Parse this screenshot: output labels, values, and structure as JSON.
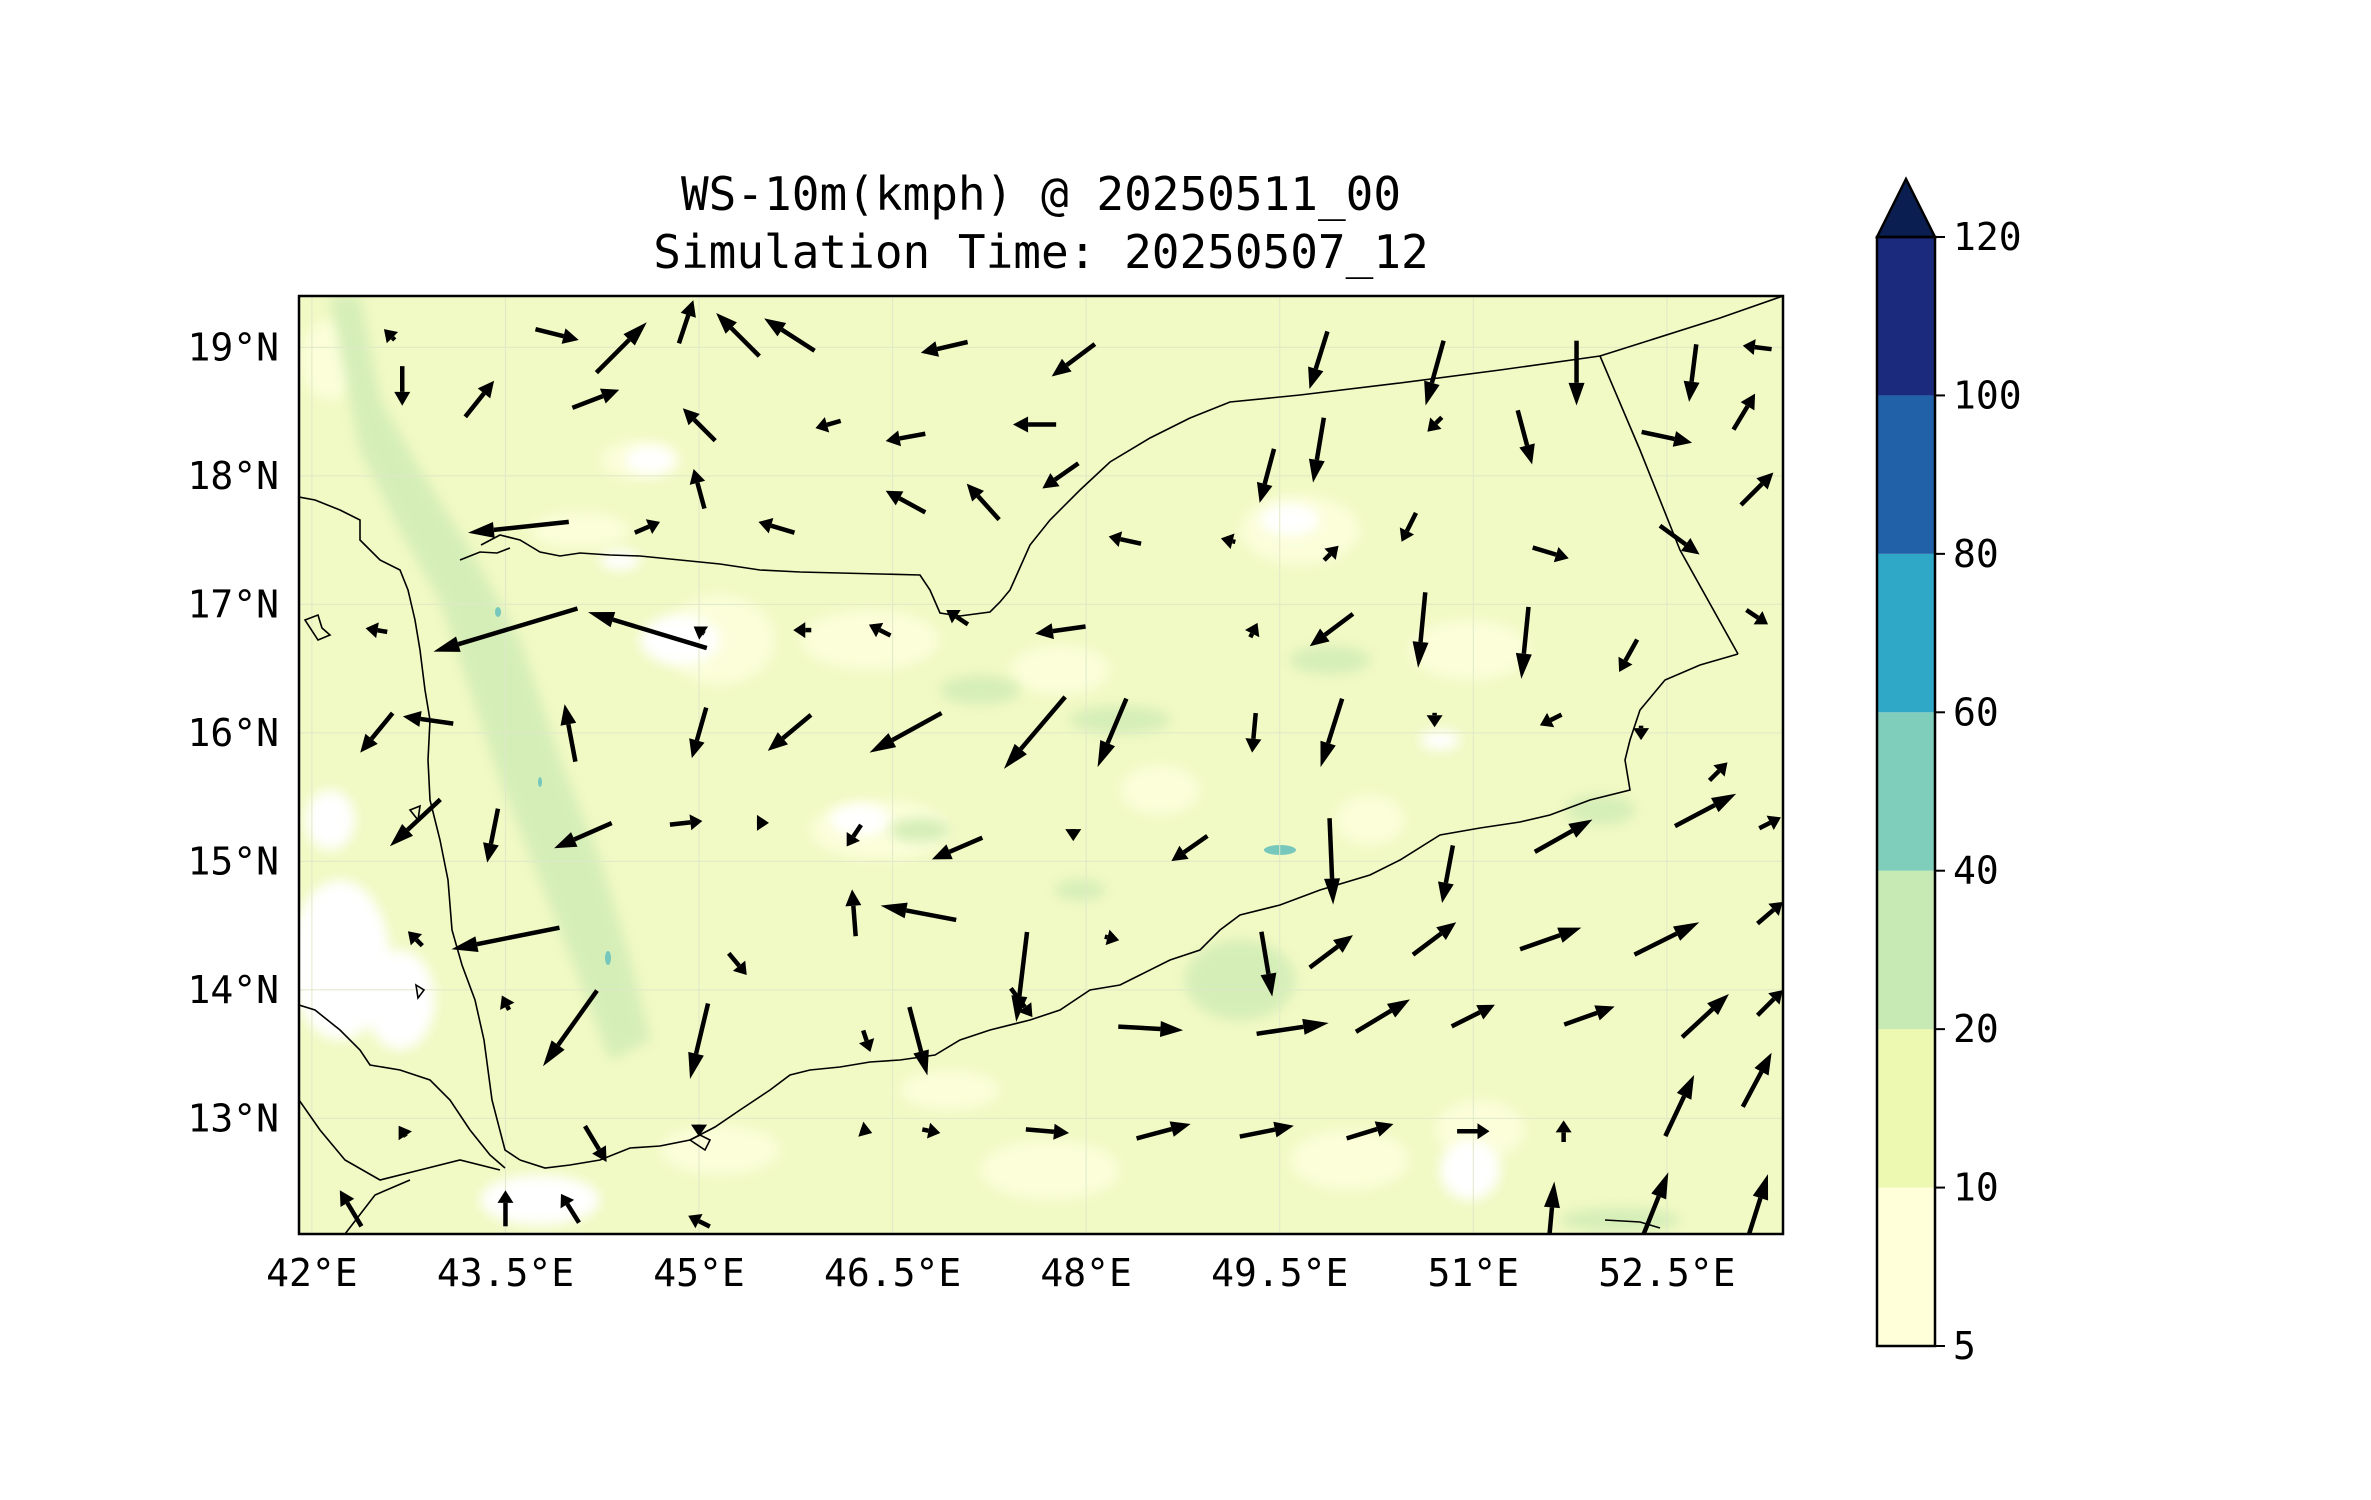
{
  "title": {
    "line1": "WS-10m(kmph) @ 20250511_00",
    "line2": "Simulation Time: 20250507_12"
  },
  "map": {
    "lon_range": [
      41.9,
      53.4
    ],
    "lat_range": [
      12.1,
      19.4
    ],
    "x_ticks": [
      {
        "value": 42.0,
        "label": "42°E"
      },
      {
        "value": 43.5,
        "label": "43.5°E"
      },
      {
        "value": 45.0,
        "label": "45°E"
      },
      {
        "value": 46.5,
        "label": "46.5°E"
      },
      {
        "value": 48.0,
        "label": "48°E"
      },
      {
        "value": 49.5,
        "label": "49.5°E"
      },
      {
        "value": 51.0,
        "label": "51°E"
      },
      {
        "value": 52.5,
        "label": "52.5°E"
      }
    ],
    "y_ticks": [
      {
        "value": 19,
        "label": "19°N"
      },
      {
        "value": 18,
        "label": "18°N"
      },
      {
        "value": 17,
        "label": "17°N"
      },
      {
        "value": 16,
        "label": "16°N"
      },
      {
        "value": 15,
        "label": "15°N"
      },
      {
        "value": 14,
        "label": "14°N"
      },
      {
        "value": 13,
        "label": "13°N"
      }
    ],
    "field_colors": {
      "lt5": "#ffffff",
      "5_10": "#fbfed9",
      "10_20": "#eef8c0",
      "20_40": "#d3edb5",
      "40_60": "#76c7bc"
    }
  },
  "colorbar": {
    "levels": [
      5,
      10,
      20,
      40,
      60,
      80,
      100,
      120
    ],
    "colors": [
      "#ffffd9",
      "#edf8b1",
      "#c7e9b4",
      "#7fcdbb",
      "#2fa7c7",
      "#2161a8",
      "#1c2a7d"
    ],
    "extend_color": "#0b1e52",
    "labels": [
      "5",
      "10",
      "20",
      "40",
      "60",
      "80",
      "100",
      "120"
    ]
  },
  "wind_vectors": [
    {
      "lon": 42.6,
      "lat": 19.1,
      "u": -3,
      "v": 3
    },
    {
      "lon": 43.9,
      "lat": 19.1,
      "u": 12,
      "v": -3
    },
    {
      "lon": 44.4,
      "lat": 19.0,
      "u": 14,
      "v": 14
    },
    {
      "lon": 44.9,
      "lat": 19.2,
      "u": 4,
      "v": 12
    },
    {
      "lon": 45.3,
      "lat": 19.1,
      "u": -12,
      "v": 12
    },
    {
      "lon": 45.7,
      "lat": 19.1,
      "u": -14,
      "v": 9
    },
    {
      "lon": 46.9,
      "lat": 19.0,
      "u": -13,
      "v": -3
    },
    {
      "lon": 47.9,
      "lat": 18.9,
      "u": -12,
      "v": -9
    },
    {
      "lon": 49.8,
      "lat": 18.9,
      "u": -5,
      "v": -16
    },
    {
      "lon": 50.7,
      "lat": 18.8,
      "u": -5,
      "v": -18
    },
    {
      "lon": 51.8,
      "lat": 18.8,
      "u": 0,
      "v": -18
    },
    {
      "lon": 52.7,
      "lat": 18.8,
      "u": -2,
      "v": -16
    },
    {
      "lon": 53.2,
      "lat": 19.0,
      "u": -8,
      "v": 1
    },
    {
      "lon": 53.1,
      "lat": 18.5,
      "u": 6,
      "v": 10
    },
    {
      "lon": 42.7,
      "lat": 18.7,
      "u": 0,
      "v": -11
    },
    {
      "lon": 43.3,
      "lat": 18.6,
      "u": 8,
      "v": 10
    },
    {
      "lon": 44.2,
      "lat": 18.6,
      "u": 13,
      "v": 5
    },
    {
      "lon": 45.0,
      "lat": 18.4,
      "u": -9,
      "v": 9
    },
    {
      "lon": 46.0,
      "lat": 18.4,
      "u": -7,
      "v": -2
    },
    {
      "lon": 46.6,
      "lat": 18.3,
      "u": -11,
      "v": -2
    },
    {
      "lon": 47.6,
      "lat": 18.4,
      "u": -12,
      "v": 0
    },
    {
      "lon": 47.8,
      "lat": 18.0,
      "u": -10,
      "v": -7
    },
    {
      "lon": 49.4,
      "lat": 18.0,
      "u": -4,
      "v": -15
    },
    {
      "lon": 49.8,
      "lat": 18.2,
      "u": -3,
      "v": -18
    },
    {
      "lon": 50.7,
      "lat": 18.4,
      "u": -4,
      "v": -4
    },
    {
      "lon": 51.4,
      "lat": 18.3,
      "u": 4,
      "v": -15
    },
    {
      "lon": 52.5,
      "lat": 18.3,
      "u": 14,
      "v": -3
    },
    {
      "lon": 53.2,
      "lat": 17.9,
      "u": 9,
      "v": 9
    },
    {
      "lon": 43.6,
      "lat": 17.6,
      "u": -28,
      "v": -3
    },
    {
      "lon": 44.6,
      "lat": 17.6,
      "u": 7,
      "v": 3
    },
    {
      "lon": 45.0,
      "lat": 17.9,
      "u": -3,
      "v": 11
    },
    {
      "lon": 45.6,
      "lat": 17.6,
      "u": -10,
      "v": 3
    },
    {
      "lon": 46.6,
      "lat": 17.8,
      "u": -11,
      "v": 6
    },
    {
      "lon": 47.2,
      "lat": 17.8,
      "u": -9,
      "v": 10
    },
    {
      "lon": 48.3,
      "lat": 17.5,
      "u": -9,
      "v": 2
    },
    {
      "lon": 49.1,
      "lat": 17.5,
      "u": -4,
      "v": 1
    },
    {
      "lon": 49.9,
      "lat": 17.4,
      "u": 4,
      "v": 4
    },
    {
      "lon": 50.5,
      "lat": 17.6,
      "u": -4,
      "v": -8
    },
    {
      "lon": 51.6,
      "lat": 17.4,
      "u": 10,
      "v": -3
    },
    {
      "lon": 52.6,
      "lat": 17.5,
      "u": 11,
      "v": -8
    },
    {
      "lon": 53.2,
      "lat": 16.9,
      "u": 6,
      "v": -4
    },
    {
      "lon": 42.5,
      "lat": 16.8,
      "u": -6,
      "v": 1
    },
    {
      "lon": 43.5,
      "lat": 16.8,
      "u": -40,
      "v": -12
    },
    {
      "lon": 44.6,
      "lat": 16.8,
      "u": -33,
      "v": 10
    },
    {
      "lon": 45.0,
      "lat": 16.8,
      "u": -3,
      "v": 2
    },
    {
      "lon": 45.8,
      "lat": 16.8,
      "u": -5,
      "v": 0
    },
    {
      "lon": 46.4,
      "lat": 16.8,
      "u": -6,
      "v": 3
    },
    {
      "lon": 47.0,
      "lat": 16.9,
      "u": -6,
      "v": 4
    },
    {
      "lon": 47.8,
      "lat": 16.8,
      "u": -14,
      "v": -2
    },
    {
      "lon": 49.3,
      "lat": 16.8,
      "u": 2,
      "v": 4
    },
    {
      "lon": 49.9,
      "lat": 16.8,
      "u": -12,
      "v": -9
    },
    {
      "lon": 50.6,
      "lat": 16.8,
      "u": -2,
      "v": -21
    },
    {
      "lon": 51.4,
      "lat": 16.7,
      "u": -2,
      "v": -20
    },
    {
      "lon": 52.2,
      "lat": 16.6,
      "u": -5,
      "v": -9
    },
    {
      "lon": 52.9,
      "lat": 15.7,
      "u": 5,
      "v": 5
    },
    {
      "lon": 42.9,
      "lat": 16.1,
      "u": -14,
      "v": 2
    },
    {
      "lon": 42.5,
      "lat": 16.0,
      "u": -9,
      "v": -11
    },
    {
      "lon": 44.0,
      "lat": 16.0,
      "u": -3,
      "v": 16
    },
    {
      "lon": 45.0,
      "lat": 16.0,
      "u": -4,
      "v": -14
    },
    {
      "lon": 45.7,
      "lat": 16.0,
      "u": -12,
      "v": -10
    },
    {
      "lon": 46.6,
      "lat": 16.0,
      "u": -20,
      "v": -11
    },
    {
      "lon": 47.6,
      "lat": 16.0,
      "u": -17,
      "v": -20
    },
    {
      "lon": 48.2,
      "lat": 16.0,
      "u": -8,
      "v": -19
    },
    {
      "lon": 49.3,
      "lat": 16.0,
      "u": -1,
      "v": -11
    },
    {
      "lon": 49.9,
      "lat": 16.0,
      "u": -6,
      "v": -19
    },
    {
      "lon": 50.7,
      "lat": 16.1,
      "u": 0,
      "v": -4
    },
    {
      "lon": 51.6,
      "lat": 16.1,
      "u": -6,
      "v": -3
    },
    {
      "lon": 52.3,
      "lat": 16.0,
      "u": 0,
      "v": -4
    },
    {
      "lon": 42.8,
      "lat": 15.3,
      "u": -14,
      "v": -13
    },
    {
      "lon": 43.4,
      "lat": 15.2,
      "u": -3,
      "v": -15
    },
    {
      "lon": 44.1,
      "lat": 15.2,
      "u": -16,
      "v": -7
    },
    {
      "lon": 44.9,
      "lat": 15.3,
      "u": 9,
      "v": 1
    },
    {
      "lon": 45.5,
      "lat": 15.3,
      "u": 3,
      "v": 0
    },
    {
      "lon": 46.2,
      "lat": 15.2,
      "u": -4,
      "v": -6
    },
    {
      "lon": 47.0,
      "lat": 15.1,
      "u": -14,
      "v": -6
    },
    {
      "lon": 47.9,
      "lat": 15.2,
      "u": 0,
      "v": -3
    },
    {
      "lon": 48.8,
      "lat": 15.1,
      "u": -10,
      "v": -7
    },
    {
      "lon": 49.9,
      "lat": 15.0,
      "u": 1,
      "v": -24
    },
    {
      "lon": 50.8,
      "lat": 14.9,
      "u": -3,
      "v": -16
    },
    {
      "lon": 51.7,
      "lat": 15.2,
      "u": 16,
      "v": 9
    },
    {
      "lon": 52.8,
      "lat": 15.4,
      "u": 17,
      "v": 9
    },
    {
      "lon": 53.3,
      "lat": 15.3,
      "u": 6,
      "v": 3
    },
    {
      "lon": 42.8,
      "lat": 14.4,
      "u": -4,
      "v": 4
    },
    {
      "lon": 43.5,
      "lat": 14.4,
      "u": -30,
      "v": -6
    },
    {
      "lon": 43.5,
      "lat": 13.9,
      "u": -2,
      "v": 4
    },
    {
      "lon": 45.3,
      "lat": 14.2,
      "u": 5,
      "v": -6
    },
    {
      "lon": 46.2,
      "lat": 14.6,
      "u": -1,
      "v": 13
    },
    {
      "lon": 46.7,
      "lat": 14.6,
      "u": -21,
      "v": 4
    },
    {
      "lon": 47.5,
      "lat": 14.1,
      "u": -3,
      "v": -25
    },
    {
      "lon": 48.2,
      "lat": 14.4,
      "u": 4,
      "v": -1
    },
    {
      "lon": 49.4,
      "lat": 14.2,
      "u": 3,
      "v": -18
    },
    {
      "lon": 49.9,
      "lat": 14.3,
      "u": 12,
      "v": 9
    },
    {
      "lon": 50.7,
      "lat": 14.4,
      "u": 12,
      "v": 9
    },
    {
      "lon": 51.6,
      "lat": 14.4,
      "u": 17,
      "v": 6
    },
    {
      "lon": 52.5,
      "lat": 14.4,
      "u": 18,
      "v": 9
    },
    {
      "lon": 53.3,
      "lat": 14.6,
      "u": 7,
      "v": 6
    },
    {
      "lon": 42.7,
      "lat": 12.9,
      "u": -2,
      "v": 3
    },
    {
      "lon": 44.0,
      "lat": 13.7,
      "u": -15,
      "v": -21
    },
    {
      "lon": 44.2,
      "lat": 12.8,
      "u": 6,
      "v": -10
    },
    {
      "lon": 45.0,
      "lat": 13.6,
      "u": -5,
      "v": -21
    },
    {
      "lon": 46.3,
      "lat": 13.6,
      "u": 2,
      "v": -6
    },
    {
      "lon": 46.7,
      "lat": 13.6,
      "u": 5,
      "v": -19
    },
    {
      "lon": 47.5,
      "lat": 13.9,
      "u": 6,
      "v": -8
    },
    {
      "lon": 48.5,
      "lat": 13.7,
      "u": 18,
      "v": -1
    },
    {
      "lon": 49.6,
      "lat": 13.7,
      "u": 20,
      "v": 3
    },
    {
      "lon": 50.3,
      "lat": 13.8,
      "u": 15,
      "v": 9
    },
    {
      "lon": 51.0,
      "lat": 13.8,
      "u": 12,
      "v": 6
    },
    {
      "lon": 51.9,
      "lat": 13.8,
      "u": 14,
      "v": 5
    },
    {
      "lon": 52.8,
      "lat": 13.8,
      "u": 13,
      "v": 12
    },
    {
      "lon": 53.3,
      "lat": 13.9,
      "u": 7,
      "v": 7
    },
    {
      "lon": 45.0,
      "lat": 12.9,
      "u": 0,
      "v": -3
    },
    {
      "lon": 46.3,
      "lat": 12.9,
      "u": 3,
      "v": -1
    },
    {
      "lon": 46.8,
      "lat": 12.9,
      "u": 5,
      "v": -1
    },
    {
      "lon": 47.7,
      "lat": 12.9,
      "u": 12,
      "v": -1
    },
    {
      "lon": 48.6,
      "lat": 12.9,
      "u": 15,
      "v": 4
    },
    {
      "lon": 49.4,
      "lat": 12.9,
      "u": 15,
      "v": 3
    },
    {
      "lon": 50.2,
      "lat": 12.9,
      "u": 13,
      "v": 4
    },
    {
      "lon": 51.0,
      "lat": 12.9,
      "u": 9,
      "v": 0
    },
    {
      "lon": 51.7,
      "lat": 12.9,
      "u": 0,
      "v": 6
    },
    {
      "lon": 52.6,
      "lat": 13.1,
      "u": 8,
      "v": 17
    },
    {
      "lon": 53.2,
      "lat": 13.3,
      "u": 8,
      "v": 15
    },
    {
      "lon": 42.3,
      "lat": 12.3,
      "u": -6,
      "v": 10
    },
    {
      "lon": 43.5,
      "lat": 12.3,
      "u": 0,
      "v": 10
    },
    {
      "lon": 44.0,
      "lat": 12.3,
      "u": -5,
      "v": 8
    },
    {
      "lon": 45.0,
      "lat": 12.2,
      "u": -6,
      "v": 3
    },
    {
      "lon": 51.6,
      "lat": 12.2,
      "u": 2,
      "v": 22
    },
    {
      "lon": 52.4,
      "lat": 12.3,
      "u": 8,
      "v": 20
    },
    {
      "lon": 53.2,
      "lat": 12.3,
      "u": 6,
      "v": 19
    }
  ]
}
